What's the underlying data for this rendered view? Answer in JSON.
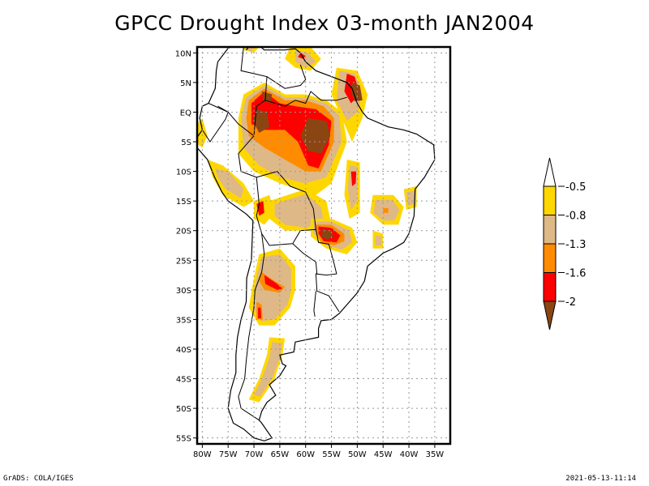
{
  "title": "GPCC Drought Index 03-month JAN2004",
  "footer": {
    "left": "GrADS: COLA/IGES",
    "right": "2021-05-13-11:14"
  },
  "map": {
    "region": "South America",
    "lon_range": [
      -81,
      -32
    ],
    "lat_range": [
      -56,
      11
    ],
    "y_ticks": [
      {
        "lat": 10,
        "label": "10N"
      },
      {
        "lat": 5,
        "label": "5N"
      },
      {
        "lat": 0,
        "label": "EQ"
      },
      {
        "lat": -5,
        "label": "5S"
      },
      {
        "lat": -10,
        "label": "10S"
      },
      {
        "lat": -15,
        "label": "15S"
      },
      {
        "lat": -20,
        "label": "20S"
      },
      {
        "lat": -25,
        "label": "25S"
      },
      {
        "lat": -30,
        "label": "30S"
      },
      {
        "lat": -35,
        "label": "35S"
      },
      {
        "lat": -40,
        "label": "40S"
      },
      {
        "lat": -45,
        "label": "45S"
      },
      {
        "lat": -50,
        "label": "50S"
      },
      {
        "lat": -55,
        "label": "55S"
      }
    ],
    "x_ticks": [
      {
        "lon": -80,
        "label": "80W"
      },
      {
        "lon": -75,
        "label": "75W"
      },
      {
        "lon": -70,
        "label": "70W"
      },
      {
        "lon": -65,
        "label": "65W"
      },
      {
        "lon": -60,
        "label": "60W"
      },
      {
        "lon": -55,
        "label": "55W"
      },
      {
        "lon": -50,
        "label": "50W"
      },
      {
        "lon": -45,
        "label": "45W"
      },
      {
        "lon": -40,
        "label": "40W"
      },
      {
        "lon": -35,
        "label": "35W"
      }
    ],
    "grid": "dotted"
  },
  "legend": {
    "levels": [
      {
        "label": "-0.5"
      },
      {
        "label": "-0.8"
      },
      {
        "label": "-1.3"
      },
      {
        "label": "-1.6"
      },
      {
        "label": "-2"
      }
    ],
    "colors": [
      "#ffffff",
      "#ffd700",
      "#deb887",
      "#ff8c00",
      "#ff0000",
      "#8b4513"
    ],
    "bins": [
      "> -0.5",
      "-0.8 to -0.5",
      "-1.3 to -0.8",
      "-1.6 to -1.3",
      "-2 to -1.6",
      "< -2"
    ]
  },
  "regions": [
    {
      "class": 1,
      "poly": [
        [
          -72,
          12
        ],
        [
          -70,
          11.5
        ],
        [
          -69,
          11
        ],
        [
          -70,
          10
        ],
        [
          -72,
          10.5
        ]
      ]
    },
    {
      "class": 2,
      "poly": [
        [
          -71.5,
          11.5
        ],
        [
          -70,
          11
        ],
        [
          -70.5,
          10.2
        ],
        [
          -71.8,
          10.8
        ]
      ]
    },
    {
      "class": 1,
      "poly": [
        [
          -63,
          11
        ],
        [
          -59,
          11
        ],
        [
          -57,
          9
        ],
        [
          -59,
          7
        ],
        [
          -62,
          7.5
        ],
        [
          -64,
          9
        ]
      ]
    },
    {
      "class": 2,
      "poly": [
        [
          -62,
          10.5
        ],
        [
          -59.5,
          10
        ],
        [
          -58,
          8.5
        ],
        [
          -60,
          7.5
        ],
        [
          -62,
          8.5
        ]
      ]
    },
    {
      "class": 4,
      "poly": [
        [
          -61,
          10
        ],
        [
          -60,
          9.5
        ],
        [
          -60.5,
          9
        ],
        [
          -61.5,
          9.3
        ]
      ]
    },
    {
      "class": 1,
      "poly": [
        [
          -54,
          7.5
        ],
        [
          -50,
          7
        ],
        [
          -48,
          3
        ],
        [
          -49,
          -1
        ],
        [
          -51,
          -5
        ],
        [
          -53,
          -1
        ],
        [
          -55,
          3
        ]
      ]
    },
    {
      "class": 2,
      "poly": [
        [
          -53.5,
          7
        ],
        [
          -50.5,
          6.5
        ],
        [
          -49,
          3
        ],
        [
          -50,
          0
        ],
        [
          -52,
          -1.5
        ],
        [
          -54,
          2
        ]
      ]
    },
    {
      "class": 4,
      "poly": [
        [
          -52,
          6.5
        ],
        [
          -50.5,
          6
        ],
        [
          -49.5,
          3
        ],
        [
          -51.2,
          1.5
        ],
        [
          -52.5,
          3.5
        ]
      ]
    },
    {
      "class": 5,
      "poly": [
        [
          -51,
          5
        ],
        [
          -49.5,
          4.5
        ],
        [
          -49,
          2
        ],
        [
          -50.5,
          1.8
        ],
        [
          -51.2,
          3.5
        ]
      ]
    },
    {
      "class": 1,
      "poly": [
        [
          -72,
          3
        ],
        [
          -68,
          5
        ],
        [
          -64,
          3
        ],
        [
          -60,
          3
        ],
        [
          -56,
          2
        ],
        [
          -53,
          0
        ],
        [
          -52,
          -5
        ],
        [
          -55,
          -12
        ],
        [
          -58,
          -14
        ],
        [
          -65,
          -12
        ],
        [
          -70,
          -10
        ],
        [
          -73,
          -7
        ],
        [
          -73,
          -1
        ]
      ]
    },
    {
      "class": 2,
      "poly": [
        [
          -71.5,
          2.5
        ],
        [
          -68,
          4.5
        ],
        [
          -64,
          2.5
        ],
        [
          -60,
          2.5
        ],
        [
          -56,
          1.5
        ],
        [
          -53.5,
          -0.5
        ],
        [
          -53,
          -5
        ],
        [
          -56,
          -11
        ],
        [
          -60,
          -12
        ],
        [
          -65,
          -11
        ],
        [
          -69,
          -9
        ],
        [
          -72,
          -6
        ],
        [
          -72.5,
          -1
        ]
      ]
    },
    {
      "class": 3,
      "poly": [
        [
          -71,
          2
        ],
        [
          -68,
          4
        ],
        [
          -64,
          2
        ],
        [
          -60,
          2
        ],
        [
          -56.5,
          1
        ],
        [
          -54.5,
          -1
        ],
        [
          -54.5,
          -5
        ],
        [
          -57,
          -10
        ],
        [
          -60,
          -10
        ],
        [
          -64,
          -8
        ],
        [
          -68,
          -6
        ],
        [
          -71,
          -4
        ],
        [
          -71.5,
          -1
        ]
      ]
    },
    {
      "class": 4,
      "poly": [
        [
          -70.5,
          1.5
        ],
        [
          -68,
          3.5
        ],
        [
          -65,
          1.5
        ],
        [
          -62,
          1
        ],
        [
          -58,
          0.5
        ],
        [
          -55,
          -1.5
        ],
        [
          -55.5,
          -5.5
        ],
        [
          -57.5,
          -9.5
        ],
        [
          -59.5,
          -9
        ],
        [
          -61.5,
          -5
        ],
        [
          -64,
          -3
        ],
        [
          -68,
          -3
        ],
        [
          -70.5,
          -2
        ]
      ]
    },
    {
      "class": 5,
      "poly": [
        [
          -69.5,
          0.5
        ],
        [
          -67.5,
          0
        ],
        [
          -67,
          -2.5
        ],
        [
          -69,
          -3.5
        ],
        [
          -70.2,
          -1.5
        ]
      ]
    },
    {
      "class": 5,
      "poly": [
        [
          -68.5,
          3.5
        ],
        [
          -66.5,
          3
        ],
        [
          -66.8,
          1.5
        ],
        [
          -68.2,
          2
        ]
      ]
    },
    {
      "class": 5,
      "poly": [
        [
          -59.5,
          -1
        ],
        [
          -56,
          -1.5
        ],
        [
          -55.2,
          -4
        ],
        [
          -57,
          -7
        ],
        [
          -59.5,
          -6.5
        ],
        [
          -61,
          -4
        ]
      ]
    },
    {
      "class": 1,
      "poly": [
        [
          -82,
          -3
        ],
        [
          -80,
          -1
        ],
        [
          -79,
          -4
        ],
        [
          -80,
          -6
        ],
        [
          -81.5,
          -5
        ]
      ]
    },
    {
      "class": 1,
      "poly": [
        [
          -79,
          -8
        ],
        [
          -76,
          -9
        ],
        [
          -72,
          -12
        ],
        [
          -70,
          -15
        ],
        [
          -72,
          -16
        ],
        [
          -76,
          -14
        ],
        [
          -78,
          -11
        ]
      ]
    },
    {
      "class": 2,
      "poly": [
        [
          -77.5,
          -9.5
        ],
        [
          -75,
          -10
        ],
        [
          -72,
          -13
        ],
        [
          -72.5,
          -14.5
        ],
        [
          -75.5,
          -13
        ],
        [
          -77,
          -11
        ]
      ]
    },
    {
      "class": 1,
      "poly": [
        [
          -70,
          -15
        ],
        [
          -67,
          -14
        ],
        [
          -66,
          -17
        ],
        [
          -68,
          -19
        ],
        [
          -70,
          -18
        ]
      ]
    },
    {
      "class": 4,
      "poly": [
        [
          -69.5,
          -15.5
        ],
        [
          -68.2,
          -15
        ],
        [
          -68,
          -17
        ],
        [
          -69,
          -17.5
        ]
      ]
    },
    {
      "class": 1,
      "poly": [
        [
          -67,
          -15
        ],
        [
          -60,
          -13
        ],
        [
          -56,
          -15
        ],
        [
          -55,
          -19
        ],
        [
          -59,
          -20
        ],
        [
          -64,
          -20
        ],
        [
          -67,
          -18
        ]
      ]
    },
    {
      "class": 2,
      "poly": [
        [
          -66,
          -15.5
        ],
        [
          -60,
          -13.8
        ],
        [
          -57,
          -16
        ],
        [
          -56.5,
          -18.5
        ],
        [
          -60,
          -19.5
        ],
        [
          -64,
          -19
        ],
        [
          -66,
          -17.5
        ]
      ]
    },
    {
      "class": 1,
      "poly": [
        [
          -59,
          -18
        ],
        [
          -55,
          -18
        ],
        [
          -51,
          -19.5
        ],
        [
          -50,
          -22
        ],
        [
          -52,
          -24
        ],
        [
          -56,
          -23
        ],
        [
          -59,
          -21
        ]
      ]
    },
    {
      "class": 2,
      "poly": [
        [
          -58.5,
          -18.5
        ],
        [
          -55,
          -18.5
        ],
        [
          -51.5,
          -20
        ],
        [
          -51,
          -22
        ],
        [
          -53,
          -23.2
        ],
        [
          -56,
          -22.5
        ],
        [
          -58.5,
          -20.5
        ]
      ]
    },
    {
      "class": 3,
      "poly": [
        [
          -58,
          -19
        ],
        [
          -55,
          -19
        ],
        [
          -52.5,
          -20.5
        ],
        [
          -52.5,
          -21.8
        ],
        [
          -54.5,
          -22.5
        ],
        [
          -57,
          -22
        ],
        [
          -58,
          -20.5
        ]
      ]
    },
    {
      "class": 4,
      "poly": [
        [
          -57.5,
          -19.3
        ],
        [
          -55,
          -19.5
        ],
        [
          -53.3,
          -20.8
        ],
        [
          -54,
          -22
        ],
        [
          -56.5,
          -21.8
        ],
        [
          -57.5,
          -20.5
        ]
      ]
    },
    {
      "class": 5,
      "poly": [
        [
          -56.8,
          -19.8
        ],
        [
          -55.2,
          -20
        ],
        [
          -54.5,
          -21
        ],
        [
          -55.8,
          -21.5
        ],
        [
          -57,
          -21
        ]
      ]
    },
    {
      "class": 1,
      "poly": [
        [
          -52,
          -8
        ],
        [
          -49.5,
          -8.5
        ],
        [
          -49.5,
          -17
        ],
        [
          -51.5,
          -18
        ],
        [
          -52.5,
          -14
        ]
      ]
    },
    {
      "class": 2,
      "poly": [
        [
          -51.5,
          -9
        ],
        [
          -50,
          -9.2
        ],
        [
          -50,
          -15
        ],
        [
          -51.2,
          -16.5
        ],
        [
          -51.8,
          -13
        ]
      ]
    },
    {
      "class": 4,
      "poly": [
        [
          -51.2,
          -10
        ],
        [
          -50.2,
          -10
        ],
        [
          -50.3,
          -12
        ],
        [
          -51,
          -12.5
        ]
      ]
    },
    {
      "class": 1,
      "poly": [
        [
          -47,
          -14
        ],
        [
          -43,
          -14
        ],
        [
          -41,
          -16
        ],
        [
          -42,
          -19
        ],
        [
          -45,
          -19
        ],
        [
          -47.5,
          -17
        ]
      ]
    },
    {
      "class": 2,
      "poly": [
        [
          -46.5,
          -14.8
        ],
        [
          -43.2,
          -14.8
        ],
        [
          -41.8,
          -16.5
        ],
        [
          -42.8,
          -18.3
        ],
        [
          -45,
          -18.3
        ],
        [
          -46.8,
          -17
        ]
      ]
    },
    {
      "class": 3,
      "poly": [
        [
          -45,
          -16.2
        ],
        [
          -44,
          -16.2
        ],
        [
          -44,
          -17
        ],
        [
          -45,
          -17
        ]
      ]
    },
    {
      "class": 1,
      "poly": [
        [
          -41,
          -13
        ],
        [
          -38.5,
          -12.5
        ],
        [
          -38.5,
          -16
        ],
        [
          -40.5,
          -16.5
        ]
      ]
    },
    {
      "class": 2,
      "poly": [
        [
          -40.5,
          -13.5
        ],
        [
          -38.8,
          -13.2
        ],
        [
          -38.8,
          -15.5
        ],
        [
          -40.2,
          -15.8
        ]
      ]
    },
    {
      "class": 1,
      "poly": [
        [
          -47,
          -20
        ],
        [
          -45,
          -20.5
        ],
        [
          -45,
          -23
        ],
        [
          -47,
          -23
        ]
      ]
    },
    {
      "class": 2,
      "poly": [
        [
          -46.5,
          -20.8
        ],
        [
          -45.3,
          -21
        ],
        [
          -45.3,
          -22.5
        ],
        [
          -46.5,
          -22.5
        ]
      ]
    },
    {
      "class": 1,
      "poly": [
        [
          -69,
          -24
        ],
        [
          -65,
          -23
        ],
        [
          -62,
          -26
        ],
        [
          -62,
          -30
        ],
        [
          -63,
          -33
        ],
        [
          -66,
          -36
        ],
        [
          -69,
          -36
        ],
        [
          -71,
          -33
        ],
        [
          -70,
          -28
        ]
      ]
    },
    {
      "class": 2,
      "poly": [
        [
          -68.5,
          -24.5
        ],
        [
          -65,
          -24
        ],
        [
          -62.8,
          -26.5
        ],
        [
          -62.8,
          -30
        ],
        [
          -63.5,
          -32.5
        ],
        [
          -66,
          -35
        ],
        [
          -68.5,
          -35.3
        ],
        [
          -70.2,
          -33
        ],
        [
          -69.5,
          -28
        ]
      ]
    },
    {
      "class": 3,
      "poly": [
        [
          -68.5,
          -27
        ],
        [
          -66,
          -28.5
        ],
        [
          -64,
          -29.5
        ],
        [
          -65,
          -30.5
        ],
        [
          -68,
          -30
        ],
        [
          -69,
          -28.5
        ]
      ]
    },
    {
      "class": 4,
      "poly": [
        [
          -68,
          -27.5
        ],
        [
          -65.5,
          -29
        ],
        [
          -64.5,
          -29.8
        ],
        [
          -65.5,
          -30
        ],
        [
          -67.8,
          -29
        ]
      ]
    },
    {
      "class": 3,
      "poly": [
        [
          -69.5,
          -32
        ],
        [
          -68.5,
          -32.5
        ],
        [
          -68.3,
          -35
        ],
        [
          -69.5,
          -35
        ]
      ]
    },
    {
      "class": 4,
      "poly": [
        [
          -69.2,
          -33
        ],
        [
          -68.7,
          -33
        ],
        [
          -68.6,
          -34.8
        ],
        [
          -69.2,
          -34.8
        ]
      ]
    },
    {
      "class": 1,
      "poly": [
        [
          -67,
          -38
        ],
        [
          -64,
          -38.2
        ],
        [
          -64.5,
          -41
        ],
        [
          -66,
          -45
        ],
        [
          -69,
          -49
        ],
        [
          -71,
          -48.5
        ],
        [
          -69,
          -45
        ],
        [
          -67.5,
          -41
        ]
      ]
    },
    {
      "class": 2,
      "poly": [
        [
          -66.5,
          -38.8
        ],
        [
          -64.6,
          -39
        ],
        [
          -65,
          -41.5
        ],
        [
          -66.5,
          -45
        ],
        [
          -68.8,
          -48
        ],
        [
          -70,
          -47.8
        ],
        [
          -68.5,
          -45
        ],
        [
          -67,
          -41.5
        ]
      ]
    }
  ]
}
